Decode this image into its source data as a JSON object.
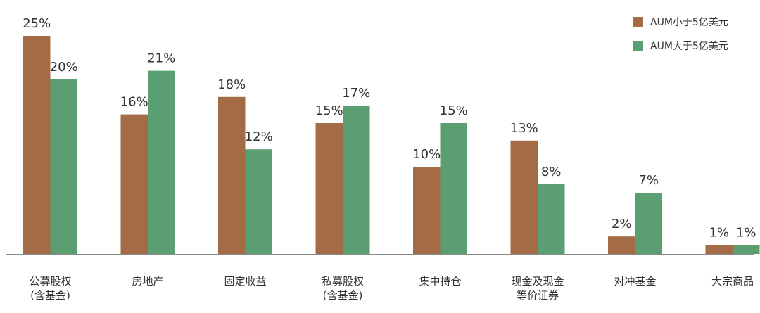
{
  "colors": {
    "series_a": "#a46b47",
    "series_b": "#5a9e72",
    "axis": "#888888",
    "text": "#333333"
  },
  "chart_data": {
    "type": "bar",
    "categories": [
      "公募股权\n(含基金)",
      "房地产",
      "固定收益",
      "私募股权\n(含基金)",
      "集中持仓",
      "现金及现金\n等价证券",
      "对冲基金",
      "大宗商品"
    ],
    "series": [
      {
        "name": "AUM小于5亿美元",
        "values": [
          25,
          16,
          18,
          15,
          10,
          13,
          2,
          1
        ],
        "labels": [
          "25%",
          "16%",
          "18%",
          "15%",
          "10%",
          "13%",
          "2%",
          "1%"
        ]
      },
      {
        "name": "AUM大于5亿美元",
        "values": [
          20,
          21,
          12,
          17,
          15,
          8,
          7,
          1
        ],
        "labels": [
          "20%",
          "21%",
          "12%",
          "17%",
          "15%",
          "8%",
          "7%",
          "1%"
        ]
      }
    ],
    "ylim": [
      0,
      25
    ],
    "grid": false,
    "legend_position": "top-right"
  }
}
